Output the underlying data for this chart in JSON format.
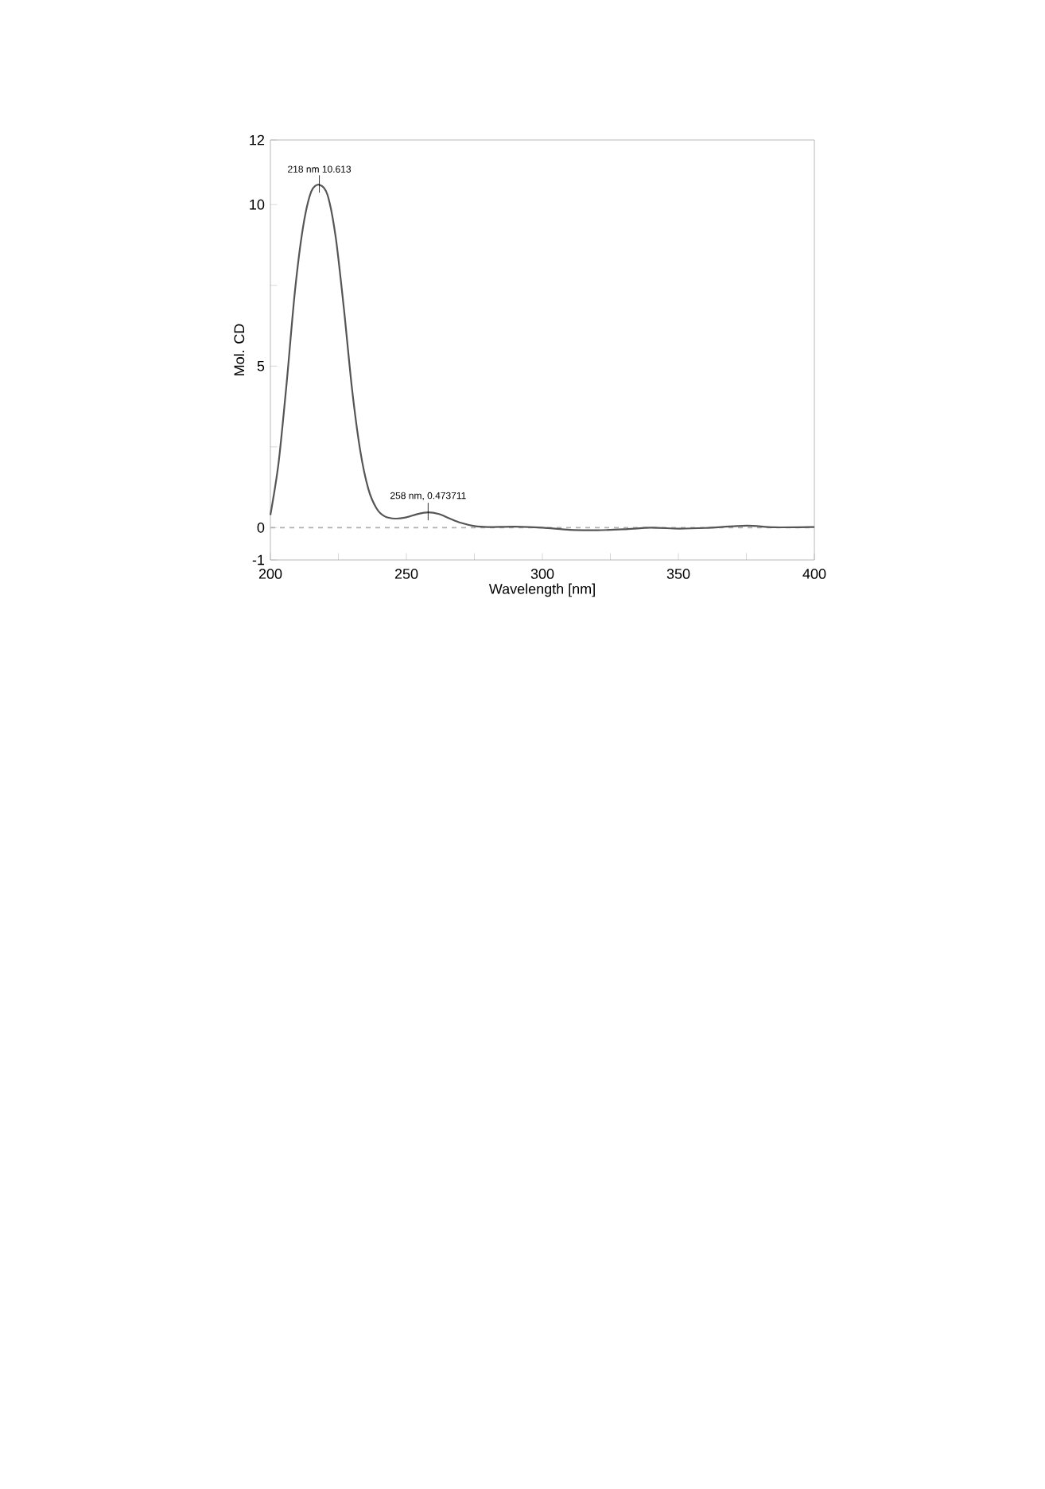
{
  "chart_data": {
    "type": "line",
    "xlabel": "Wavelength [nm]",
    "ylabel": "Mol. CD",
    "x": [
      200,
      203,
      206,
      209,
      212,
      215,
      218,
      221,
      224,
      227,
      230,
      233,
      236,
      239,
      242,
      246,
      250,
      254,
      258,
      262,
      266,
      270,
      275,
      280,
      290,
      300,
      310,
      320,
      330,
      340,
      350,
      360,
      375,
      385,
      400
    ],
    "series": [
      {
        "color": "#555555",
        "values": [
          0.39,
          2.0,
          4.5,
          7.3,
          9.3,
          10.4,
          10.613,
          10.3,
          9.0,
          6.8,
          4.3,
          2.4,
          1.2,
          0.6,
          0.35,
          0.28,
          0.32,
          0.42,
          0.473711,
          0.42,
          0.28,
          0.15,
          0.05,
          0.02,
          0.03,
          0.0,
          -0.07,
          -0.08,
          -0.05,
          0.0,
          -0.03,
          -0.01,
          0.06,
          0.01,
          0.02
        ]
      }
    ],
    "xlim": [
      200,
      400
    ],
    "ylim": [
      -1,
      12
    ],
    "xticks": [
      200,
      {
        "value": 225,
        "label": null
      },
      250,
      {
        "value": 275,
        "label": null
      },
      300,
      {
        "value": 325,
        "label": null
      },
      350,
      {
        "value": 375,
        "label": null
      },
      400
    ],
    "yticks": [
      -1,
      0,
      {
        "value": 2.5,
        "label": null
      },
      5,
      {
        "value": 7.5,
        "label": null
      },
      10,
      12
    ],
    "ref_lines": [
      {
        "axis": "y",
        "value": 0,
        "color": "#b0b0b0",
        "line_style": "dashed"
      }
    ],
    "annotations": [
      {
        "text": "218 nm  10.613",
        "x": 218,
        "y": 10.613
      },
      {
        "text": "258 nm, 0.473711",
        "x": 258,
        "y": 0.473711
      }
    ],
    "marker": "none",
    "line_style": "solid"
  }
}
